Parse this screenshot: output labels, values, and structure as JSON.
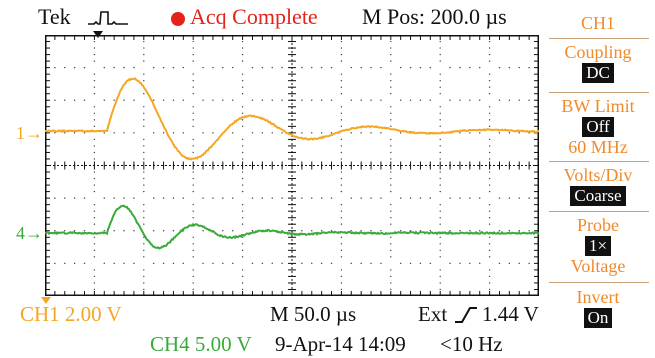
{
  "header": {
    "brand": "Tek",
    "trigger_icon": "pulse-trigger-icon",
    "acq_status": "Acq Complete",
    "position": "M Pos: 200.0 µs"
  },
  "menu": {
    "channel": "CH1",
    "coupling": {
      "title": "Coupling",
      "value": "DC"
    },
    "bw_limit": {
      "title": "BW Limit",
      "value": "Off",
      "extra": "60 MHz"
    },
    "volts_div": {
      "title": "Volts/Div",
      "value": "Coarse"
    },
    "probe": {
      "title": "Probe",
      "value": "1×",
      "extra": "Voltage"
    },
    "invert": {
      "title": "Invert",
      "value": "On"
    }
  },
  "channels": {
    "ch1": {
      "marker": "1",
      "color": "#f5a623",
      "scale": "CH1 2.00 V"
    },
    "ch4": {
      "marker": "4",
      "color": "#3aaa3a",
      "scale": "CH4 5.00 V"
    }
  },
  "status": {
    "timebase": "M 50.0 µs",
    "trigger": "Ext",
    "trigger_level": "1.44 V",
    "date": "9-Apr-14 14:09",
    "freq": "<10 Hz"
  },
  "colors": {
    "ch1": "#f5a623",
    "ch4": "#3aaa3a",
    "accent": "#e2231a",
    "menu_text": "#f08a2a"
  }
}
